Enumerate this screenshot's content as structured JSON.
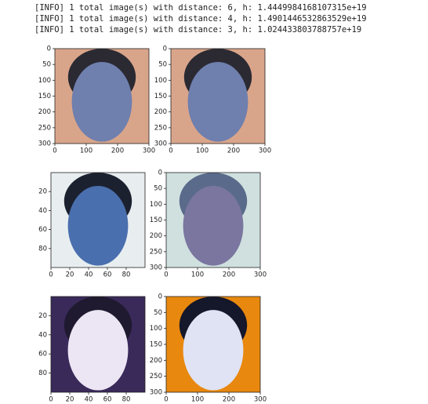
{
  "log_lines": [
    "[INFO] 1 total image(s) with distance: 6, h: 1.4449984168107315e+19",
    "[INFO] 1 total image(s) with distance: 4, h: 1.4901446532863529e+19",
    "[INFO] 1 total image(s) with distance: 3, h: 1.024433803788757e+19"
  ],
  "plots": [
    {
      "xlim": [
        0,
        300
      ],
      "ylim": [
        0,
        300
      ],
      "xticks": [
        0,
        100,
        200,
        300
      ],
      "yticks": [
        0,
        50,
        100,
        150,
        200,
        250,
        300
      ]
    },
    {
      "xlim": [
        0,
        300
      ],
      "ylim": [
        0,
        300
      ],
      "xticks": [
        0,
        100,
        200,
        300
      ],
      "yticks": [
        0,
        50,
        100,
        150,
        200,
        250,
        300
      ]
    },
    {
      "xlim": [
        0,
        100
      ],
      "ylim": [
        0,
        100
      ],
      "xticks": [
        0,
        20,
        40,
        60,
        80
      ],
      "yticks": [
        20,
        40,
        60,
        80
      ]
    },
    {
      "xlim": [
        0,
        300
      ],
      "ylim": [
        0,
        300
      ],
      "xticks": [
        0,
        100,
        200,
        300
      ],
      "yticks": [
        0,
        50,
        100,
        150,
        200,
        250,
        300
      ]
    },
    {
      "xlim": [
        0,
        100
      ],
      "ylim": [
        0,
        100
      ],
      "xticks": [
        0,
        20,
        40,
        60,
        80
      ],
      "yticks": [
        20,
        40,
        60,
        80
      ]
    },
    {
      "xlim": [
        0,
        300
      ],
      "ylim": [
        0,
        300
      ],
      "xticks": [
        0,
        100,
        200,
        300
      ],
      "yticks": [
        0,
        50,
        100,
        150,
        200,
        250,
        300
      ]
    }
  ]
}
